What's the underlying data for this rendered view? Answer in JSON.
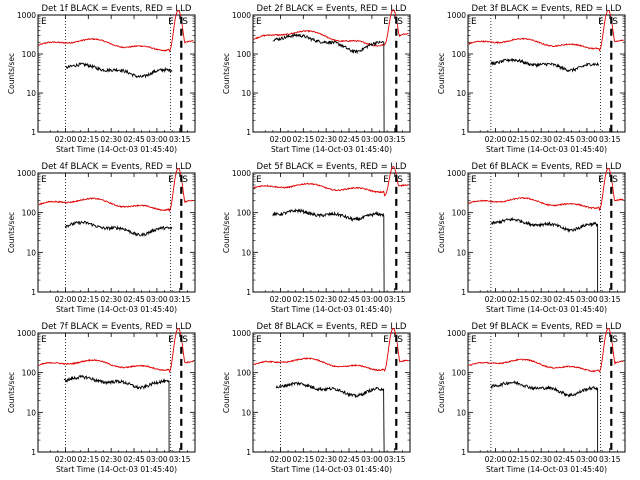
{
  "colors": {
    "events": "#000000",
    "lld": "#e00000",
    "background": "#ffffff"
  },
  "chart_data": {
    "type": "line",
    "yscale": "log",
    "ylim": [
      1,
      1000
    ],
    "yticks": [
      "1",
      "10",
      "100",
      "1000"
    ],
    "xticks": [
      "02:00",
      "02:15",
      "02:30",
      "02:45",
      "03:00",
      "03:15"
    ],
    "xtick_minutes": [
      120,
      135,
      150,
      165,
      180,
      195
    ],
    "xlim_minutes": [
      102,
      205
    ],
    "ylabel": "Counts/sec",
    "xlabel": "Start Time (14-Oct-03 01:45:40)",
    "e_marker": "E",
    "s_marker": "S",
    "panels": [
      {
        "title": "Det 1f BLACK = Events, RED = LLD",
        "lld_level": 180,
        "evt_level": 40,
        "evt_start": 120,
        "evt_end": 190,
        "dotted": [
          120,
          189
        ],
        "dashed": 196,
        "drop": false,
        "trans_ell": 190,
        "wave": 0.25
      },
      {
        "title": "Det 2f BLACK = Events, RED = LLD",
        "lld_level": 270,
        "evt_level": 210,
        "evt_start": 115,
        "evt_end": 188,
        "dotted": [],
        "dashed": 196,
        "drop": true,
        "trans_ell": 190,
        "wave": 0.35
      },
      {
        "title": "Det 3f BLACK = Events, RED = LLD",
        "lld_level": 190,
        "evt_level": 55,
        "evt_start": 117,
        "evt_end": 188,
        "dotted": [
          117,
          189
        ],
        "dashed": 196,
        "drop": false,
        "trans_ell": 190,
        "wave": 0.2
      },
      {
        "title": "Det 4f BLACK = Events, RED = LLD",
        "lld_level": 170,
        "evt_level": 42,
        "evt_start": 120,
        "evt_end": 190,
        "dotted": [
          120,
          189
        ],
        "dashed": 196,
        "drop": false,
        "trans_ell": 190,
        "wave": 0.25
      },
      {
        "title": "Det 5f BLACK = Events, RED = LLD",
        "lld_level": 430,
        "evt_level": 90,
        "evt_start": 115,
        "evt_end": 188,
        "dotted": [],
        "dashed": 196,
        "drop": true,
        "trans_ell": 190,
        "wave": 0.15
      },
      {
        "title": "Det 6f BLACK = Events, RED = LLD",
        "lld_level": 180,
        "evt_level": 52,
        "evt_start": 117,
        "evt_end": 187,
        "dotted": [
          117,
          189
        ],
        "dashed": 196,
        "drop": true,
        "trans_ell": 190,
        "wave": 0.2
      },
      {
        "title": "Det 7f BLACK = Events, RED = LLD",
        "lld_level": 160,
        "evt_level": 60,
        "evt_start": 119,
        "evt_end": 188,
        "dotted": [
          120,
          189
        ],
        "dashed": 196,
        "drop": true,
        "trans_ell": 190,
        "wave": 0.2
      },
      {
        "title": "Det 8f BLACK = Events, RED = LLD",
        "lld_level": 170,
        "evt_level": 40,
        "evt_start": 117,
        "evt_end": 188,
        "dotted": [
          120
        ],
        "dashed": 196,
        "drop": true,
        "trans_ell": 190,
        "wave": 0.25
      },
      {
        "title": "Det 9f BLACK = Events, RED = LLD",
        "lld_level": 160,
        "evt_level": 42,
        "evt_start": 117,
        "evt_end": 187,
        "dotted": [
          117,
          189
        ],
        "dashed": 196,
        "drop": true,
        "trans_ell": 190,
        "wave": 0.25
      }
    ]
  }
}
